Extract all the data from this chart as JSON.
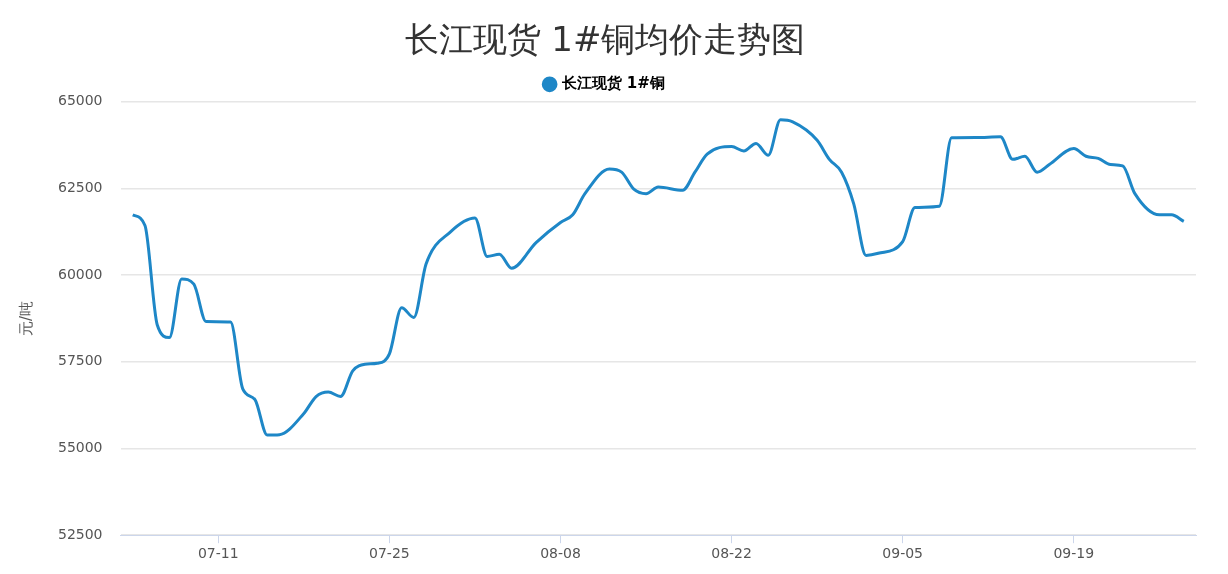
{
  "chart_data": {
    "type": "line",
    "title": "长江现货 1#铜均价走势图",
    "ylabel": "元/吨",
    "x": [
      "--07-04",
      "--07-05",
      "--07-06",
      "--07-07",
      "--07-08",
      "--07-09",
      "--07-10",
      "--07-12",
      "--07-13",
      "--07-14",
      "--07-15",
      "--07-16",
      "--07-18",
      "--07-19",
      "--07-20",
      "--07-21",
      "--07-22",
      "--07-23",
      "--07-24",
      "--07-25",
      "--07-26",
      "--07-27",
      "--07-28",
      "--07-30",
      "--08-01",
      "--08-02",
      "--08-03",
      "--08-04",
      "--08-06",
      "--08-08",
      "--08-09",
      "--08-10",
      "--08-12",
      "--08-13",
      "--08-14",
      "--08-15",
      "--08-16",
      "--08-18",
      "--08-19",
      "--08-20",
      "--08-22",
      "--08-23",
      "--08-24",
      "--08-25",
      "--08-26",
      "--08-27",
      "--08-29",
      "--08-30",
      "--08-31",
      "--09-01",
      "--09-02",
      "--09-03",
      "--09-05",
      "--09-06",
      "--09-08",
      "--09-09",
      "--09-11",
      "--09-13",
      "--09-14",
      "--09-15",
      "--09-16",
      "--09-17",
      "--09-19",
      "--09-20",
      "--09-21",
      "--09-22",
      "--09-23",
      "--09-24",
      "--09-26",
      "--09-27",
      "--09-28"
    ],
    "series": [
      {
        "name": "长江现货 1#铜",
        "color": "#1e87c7",
        "values": [
          61740,
          61430,
          58570,
          58200,
          59890,
          59740,
          58660,
          58650,
          56720,
          56410,
          55390,
          55400,
          56010,
          56500,
          56630,
          56500,
          57240,
          57430,
          57460,
          57730,
          59060,
          58780,
          60320,
          61250,
          61650,
          60540,
          60600,
          60200,
          60940,
          61520,
          61740,
          62350,
          63060,
          62970,
          62480,
          62350,
          62540,
          62450,
          62970,
          63490,
          63710,
          63580,
          63800,
          63460,
          64480,
          64420,
          63890,
          63340,
          62970,
          62050,
          60570,
          60630,
          60970,
          61950,
          61990,
          63960,
          63970,
          63990,
          63340,
          63430,
          62970,
          63190,
          63650,
          63430,
          63370,
          63190,
          63150,
          62350,
          61740,
          61740,
          61550
        ]
      }
    ],
    "xlim": [
      "--07-03",
      "--09-29"
    ],
    "xticks": [
      {
        "value": "--07-11",
        "label": "07-11"
      },
      {
        "value": "--07-25",
        "label": "07-25"
      },
      {
        "value": "--08-08",
        "label": "08-08"
      },
      {
        "value": "--08-22",
        "label": "08-22"
      },
      {
        "value": "--09-05",
        "label": "09-05"
      },
      {
        "value": "--09-19",
        "label": "09-19"
      }
    ],
    "ylim": [
      52500,
      65000
    ],
    "yticks": [
      52500,
      55000,
      57500,
      60000,
      62500,
      65000
    ],
    "grid": "y",
    "legend": "top",
    "marker": "none",
    "line_style": "solid"
  }
}
